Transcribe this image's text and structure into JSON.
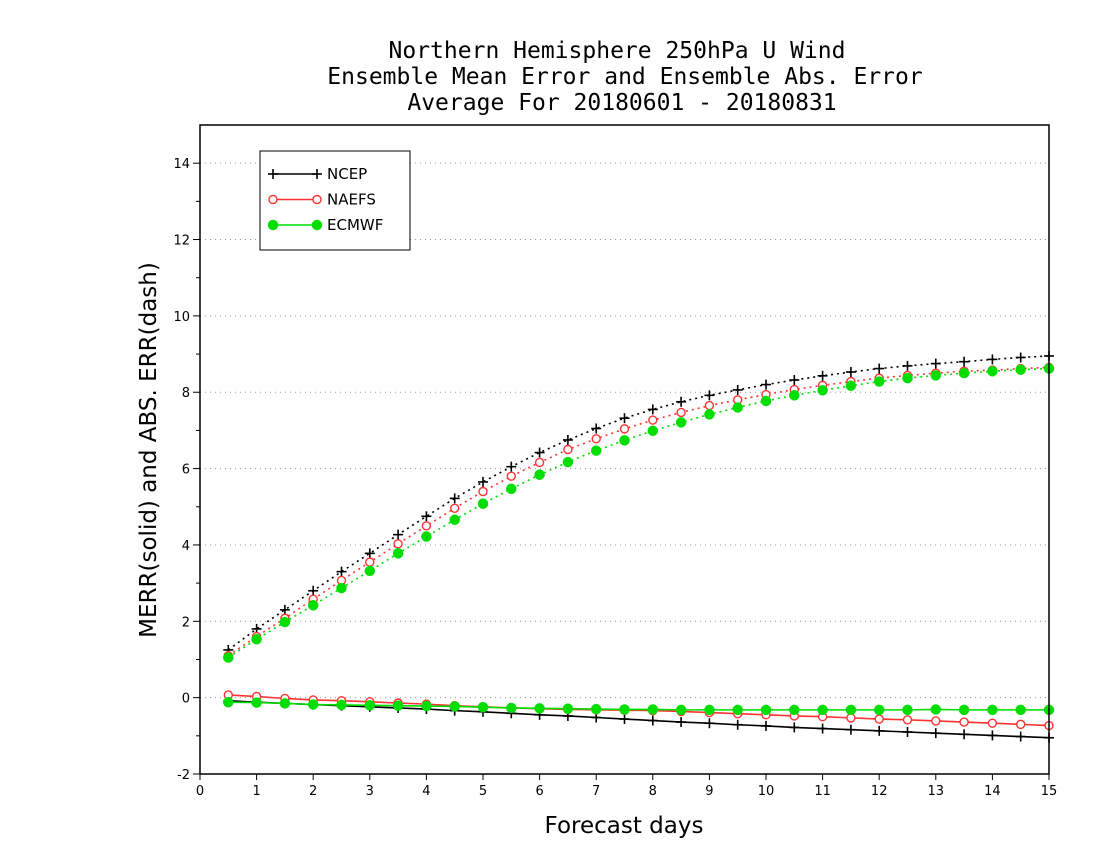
{
  "chart_data": {
    "type": "line",
    "title": [
      "Northern Hemisphere 250hPa U Wind",
      "Ensemble Mean Error and Ensemble Abs. Error",
      "Average For 20180601 - 20180831"
    ],
    "xlabel": "Forecast days",
    "ylabel": "MERR(solid) and ABS. ERR(dash)",
    "xlim": [
      0,
      15
    ],
    "ylim": [
      -2,
      15
    ],
    "xticks": [
      "0",
      "1",
      "2",
      "3",
      "4",
      "5",
      "6",
      "7",
      "8",
      "9",
      "10",
      "11",
      "12",
      "13",
      "14",
      "15"
    ],
    "yticks": [
      "-2",
      "0",
      "2",
      "4",
      "6",
      "8",
      "10",
      "12",
      "14"
    ],
    "grid": "horizontal dotted",
    "legend_position": "top-left",
    "x": [
      0.5,
      1,
      1.5,
      2,
      2.5,
      3,
      3.5,
      4,
      4.5,
      5,
      5.5,
      6,
      6.5,
      7,
      7.5,
      8,
      8.5,
      9,
      9.5,
      10,
      10.5,
      11,
      11.5,
      12,
      12.5,
      13,
      13.5,
      14,
      14.5,
      15
    ],
    "series": [
      {
        "name": "NCEP",
        "color": "#000000",
        "marker": "plus",
        "merr": [
          -0.08,
          -0.12,
          -0.15,
          -0.18,
          -0.21,
          -0.24,
          -0.27,
          -0.3,
          -0.34,
          -0.37,
          -0.41,
          -0.45,
          -0.48,
          -0.52,
          -0.56,
          -0.6,
          -0.64,
          -0.67,
          -0.71,
          -0.74,
          -0.78,
          -0.81,
          -0.84,
          -0.87,
          -0.9,
          -0.93,
          -0.96,
          -0.99,
          -1.02,
          -1.05
        ],
        "abs_err": [
          1.25,
          1.8,
          2.3,
          2.8,
          3.3,
          3.78,
          4.27,
          4.75,
          5.22,
          5.65,
          6.05,
          6.42,
          6.75,
          7.05,
          7.32,
          7.55,
          7.75,
          7.92,
          8.06,
          8.2,
          8.32,
          8.43,
          8.53,
          8.62,
          8.69,
          8.75,
          8.8,
          8.86,
          8.91,
          8.95
        ]
      },
      {
        "name": "NAEFS",
        "color": "#ff3333",
        "marker": "open-circle",
        "merr": [
          0.07,
          0.03,
          -0.02,
          -0.06,
          -0.08,
          -0.11,
          -0.14,
          -0.17,
          -0.21,
          -0.24,
          -0.27,
          -0.29,
          -0.31,
          -0.32,
          -0.33,
          -0.34,
          -0.36,
          -0.39,
          -0.42,
          -0.45,
          -0.48,
          -0.5,
          -0.53,
          -0.56,
          -0.58,
          -0.61,
          -0.64,
          -0.67,
          -0.7,
          -0.73
        ],
        "abs_err": [
          1.1,
          1.6,
          2.08,
          2.58,
          3.07,
          3.55,
          4.03,
          4.5,
          4.96,
          5.4,
          5.8,
          6.16,
          6.5,
          6.78,
          7.04,
          7.27,
          7.47,
          7.65,
          7.8,
          7.94,
          8.07,
          8.18,
          8.28,
          8.37,
          8.44,
          8.5,
          8.55,
          8.58,
          8.62,
          8.65
        ]
      },
      {
        "name": "ECMWF",
        "color": "#00dd00",
        "marker": "filled-circle",
        "merr": [
          -0.12,
          -0.13,
          -0.15,
          -0.18,
          -0.19,
          -0.2,
          -0.21,
          -0.22,
          -0.23,
          -0.25,
          -0.27,
          -0.28,
          -0.29,
          -0.3,
          -0.31,
          -0.31,
          -0.32,
          -0.32,
          -0.32,
          -0.32,
          -0.32,
          -0.32,
          -0.32,
          -0.32,
          -0.32,
          -0.31,
          -0.32,
          -0.32,
          -0.32,
          -0.32
        ],
        "abs_err": [
          1.05,
          1.53,
          1.98,
          2.42,
          2.87,
          3.32,
          3.78,
          4.22,
          4.66,
          5.08,
          5.47,
          5.84,
          6.17,
          6.47,
          6.74,
          6.99,
          7.21,
          7.42,
          7.6,
          7.77,
          7.92,
          8.05,
          8.17,
          8.28,
          8.37,
          8.44,
          8.5,
          8.55,
          8.59,
          8.62
        ]
      }
    ]
  }
}
